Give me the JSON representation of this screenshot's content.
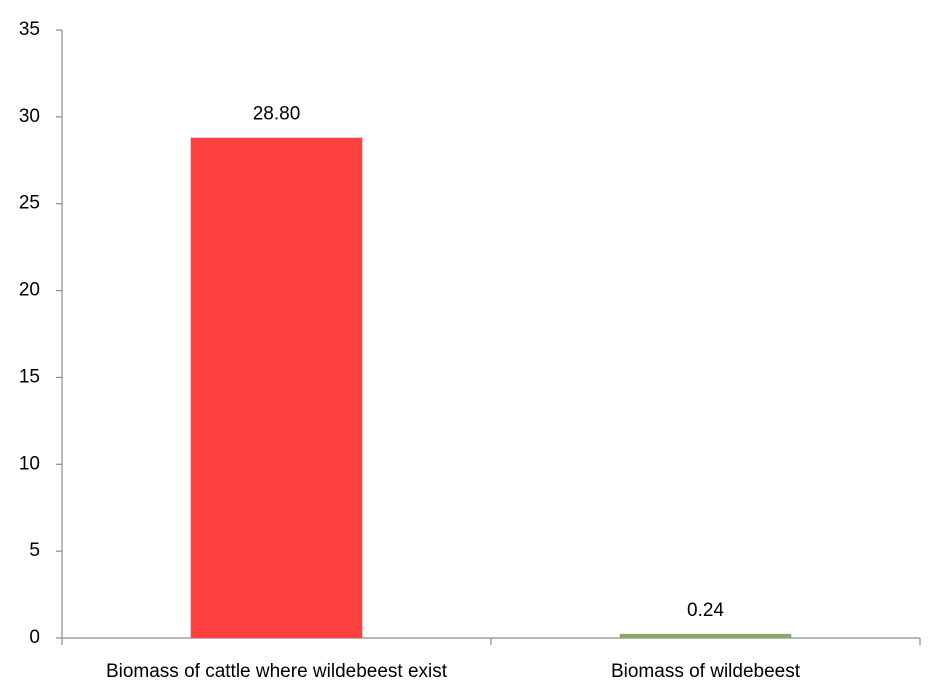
{
  "chart_data": {
    "type": "bar",
    "categories": [
      "Biomass of cattle where wildebeest exist",
      "Biomass of wildebeest"
    ],
    "values": [
      28.8,
      0.24
    ],
    "value_labels": [
      "28.80",
      "0.24"
    ],
    "colors": [
      "#ff4040",
      "#8aa86a"
    ],
    "ylim": [
      0,
      35
    ],
    "yticks": [
      0,
      5,
      10,
      15,
      20,
      25,
      30,
      35
    ],
    "grid": false
  }
}
